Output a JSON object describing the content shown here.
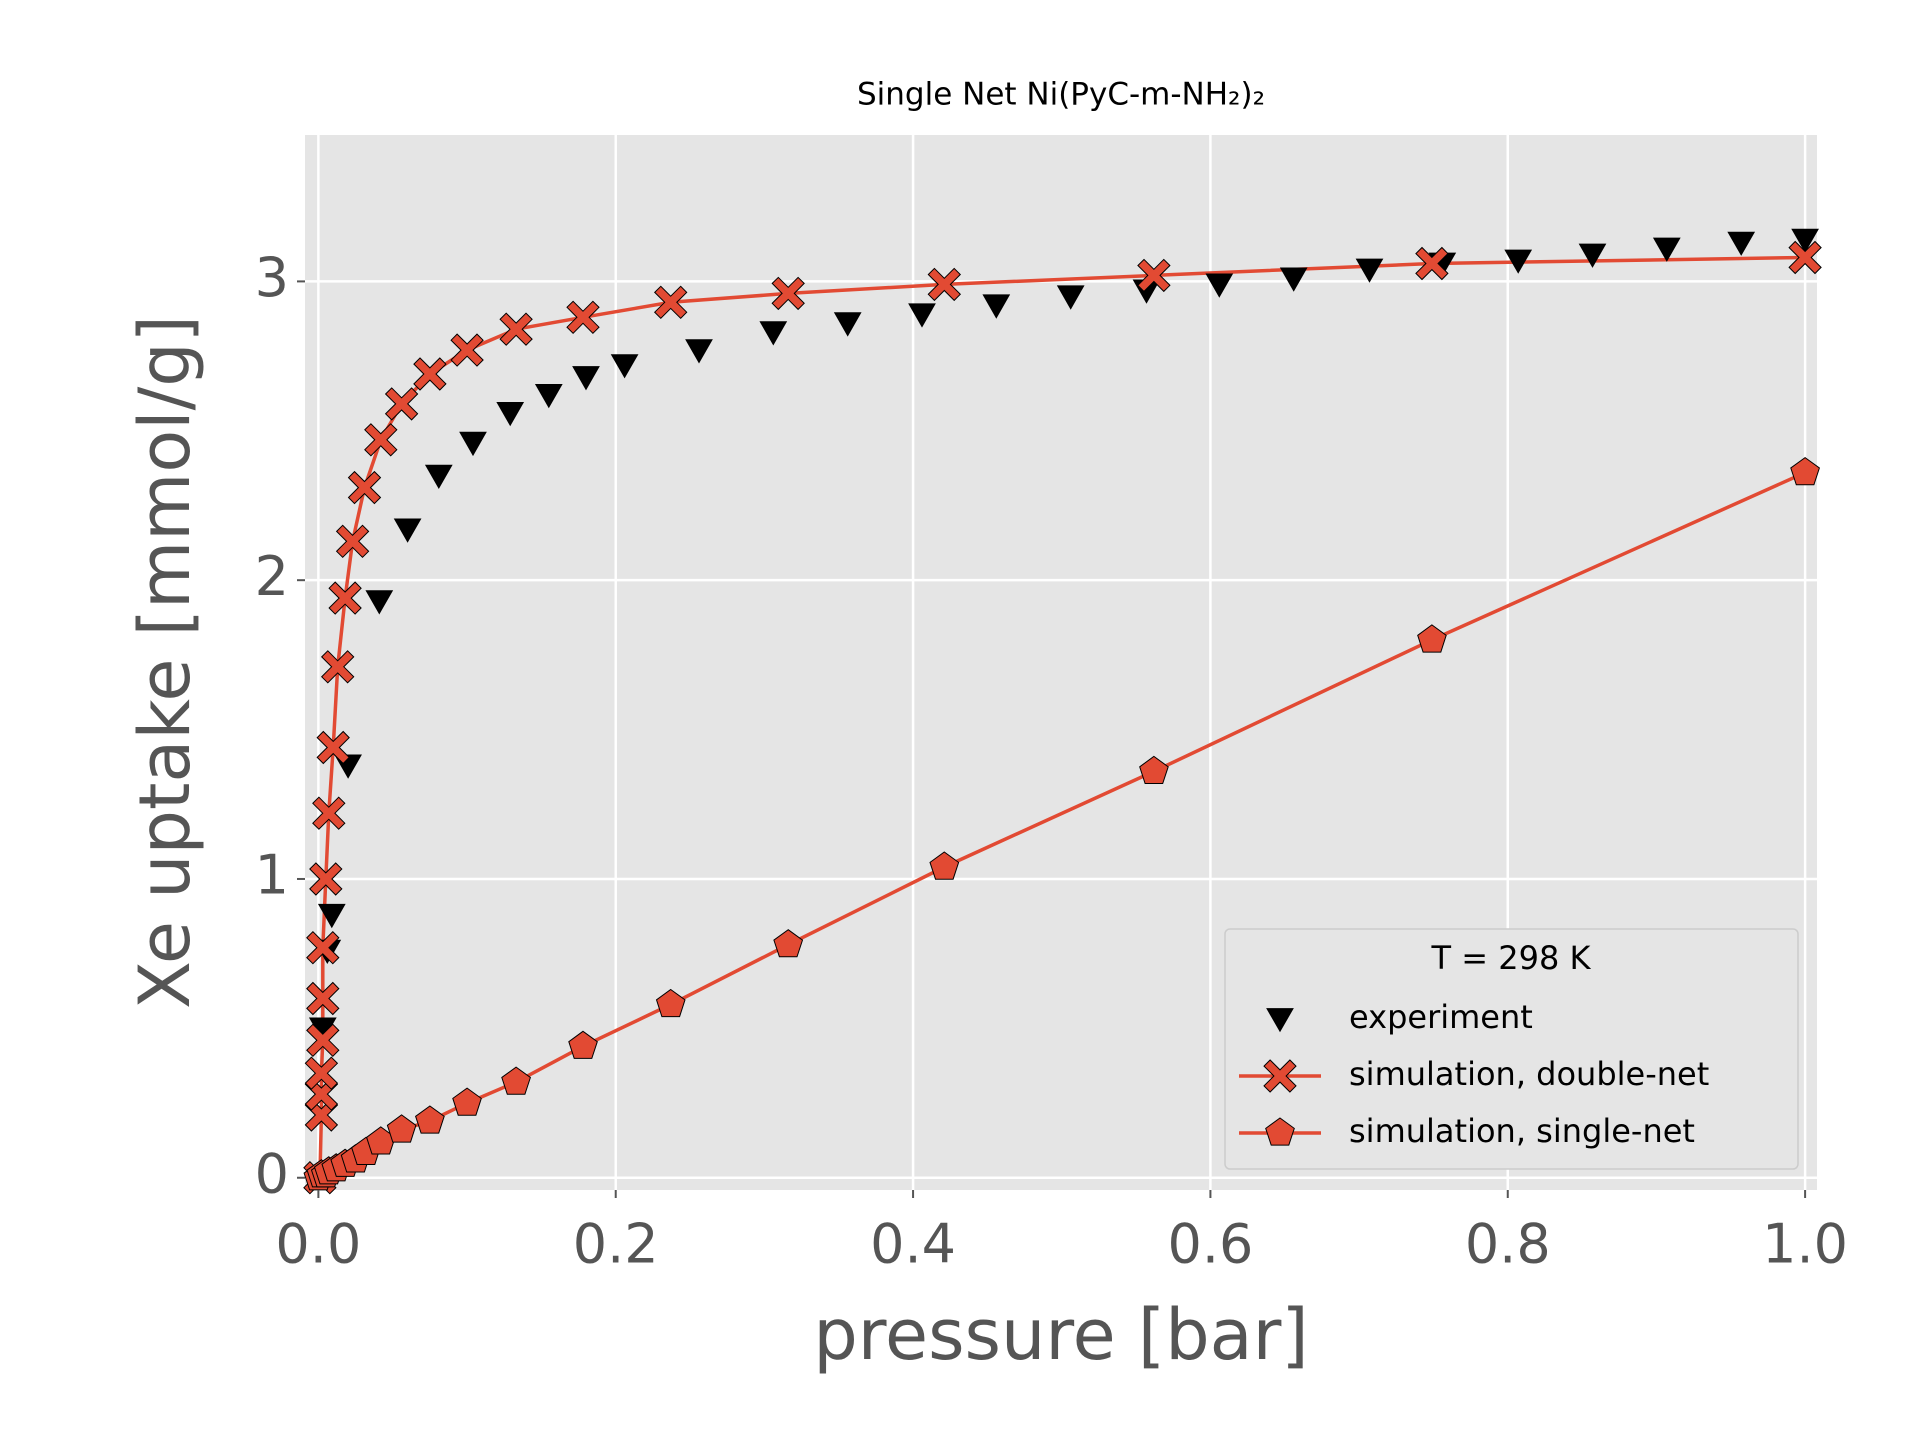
{
  "chart_data": {
    "type": "line",
    "title": "Single Net Ni(PyC-m-NH₂)₂",
    "xlabel": "pressure [bar]",
    "ylabel": "Xe uptake [mmol/g]",
    "xlim": [
      -0.009,
      1.008
    ],
    "ylim": [
      -0.041,
      3.49
    ],
    "xticks": [
      {
        "value": 0,
        "label": "0.0"
      },
      0.2,
      0.4,
      0.6,
      0.8,
      {
        "value": 1,
        "label": "1.0"
      }
    ],
    "yticks": [
      0,
      1,
      2,
      3
    ],
    "grid": true,
    "legend": {
      "title": "T = 298 K",
      "position": "lower right"
    },
    "series": [
      {
        "name": "experiment",
        "color": "#000000",
        "marker": "triangle-down",
        "line": false,
        "x": [
          0.003,
          0.006,
          0.009,
          0.02,
          0.041,
          0.06,
          0.081,
          0.104,
          0.129,
          0.155,
          0.18,
          0.206,
          0.256,
          0.306,
          0.356,
          0.406,
          0.456,
          0.506,
          0.557,
          0.606,
          0.656,
          0.707,
          0.756,
          0.807,
          0.857,
          0.907,
          0.957,
          1.0
        ],
        "values": [
          0.5,
          0.76,
          0.88,
          1.38,
          1.93,
          2.17,
          2.35,
          2.46,
          2.56,
          2.62,
          2.68,
          2.72,
          2.77,
          2.83,
          2.86,
          2.89,
          2.92,
          2.95,
          2.97,
          2.99,
          3.01,
          3.04,
          3.06,
          3.07,
          3.09,
          3.11,
          3.13,
          3.14
        ]
      },
      {
        "name": "simulation, double-net",
        "color": "#E24A33",
        "marker": "x-filled",
        "line": true,
        "x": [
          0.001,
          0.002,
          0.002,
          0.002,
          0.003,
          0.003,
          0.003,
          0.005,
          0.007,
          0.01,
          0.013,
          0.018,
          0.023,
          0.031,
          0.042,
          0.056,
          0.075,
          0.1,
          0.133,
          0.178,
          0.237,
          0.316,
          0.421,
          0.562,
          0.749,
          1.0
        ],
        "values": [
          0,
          0.21,
          0.28,
          0.35,
          0.46,
          0.6,
          0.77,
          1.0,
          1.22,
          1.44,
          1.71,
          1.94,
          2.13,
          2.31,
          2.47,
          2.59,
          2.69,
          2.77,
          2.84,
          2.88,
          2.93,
          2.96,
          2.99,
          3.02,
          3.06,
          3.08
        ]
      },
      {
        "name": "simulation, single-net",
        "color": "#E24A33",
        "marker": "pentagon",
        "line": true,
        "x": [
          0,
          0.002,
          0.005,
          0.007,
          0.012,
          0.018,
          0.025,
          0.032,
          0.042,
          0.056,
          0.075,
          0.1,
          0.133,
          0.178,
          0.237,
          0.316,
          0.421,
          0.562,
          0.749,
          1.0
        ],
        "values": [
          0,
          0.01,
          0.01,
          0.02,
          0.03,
          0.045,
          0.06,
          0.085,
          0.12,
          0.16,
          0.19,
          0.25,
          0.32,
          0.44,
          0.58,
          0.78,
          1.04,
          1.36,
          1.8,
          2.36
        ]
      }
    ]
  }
}
